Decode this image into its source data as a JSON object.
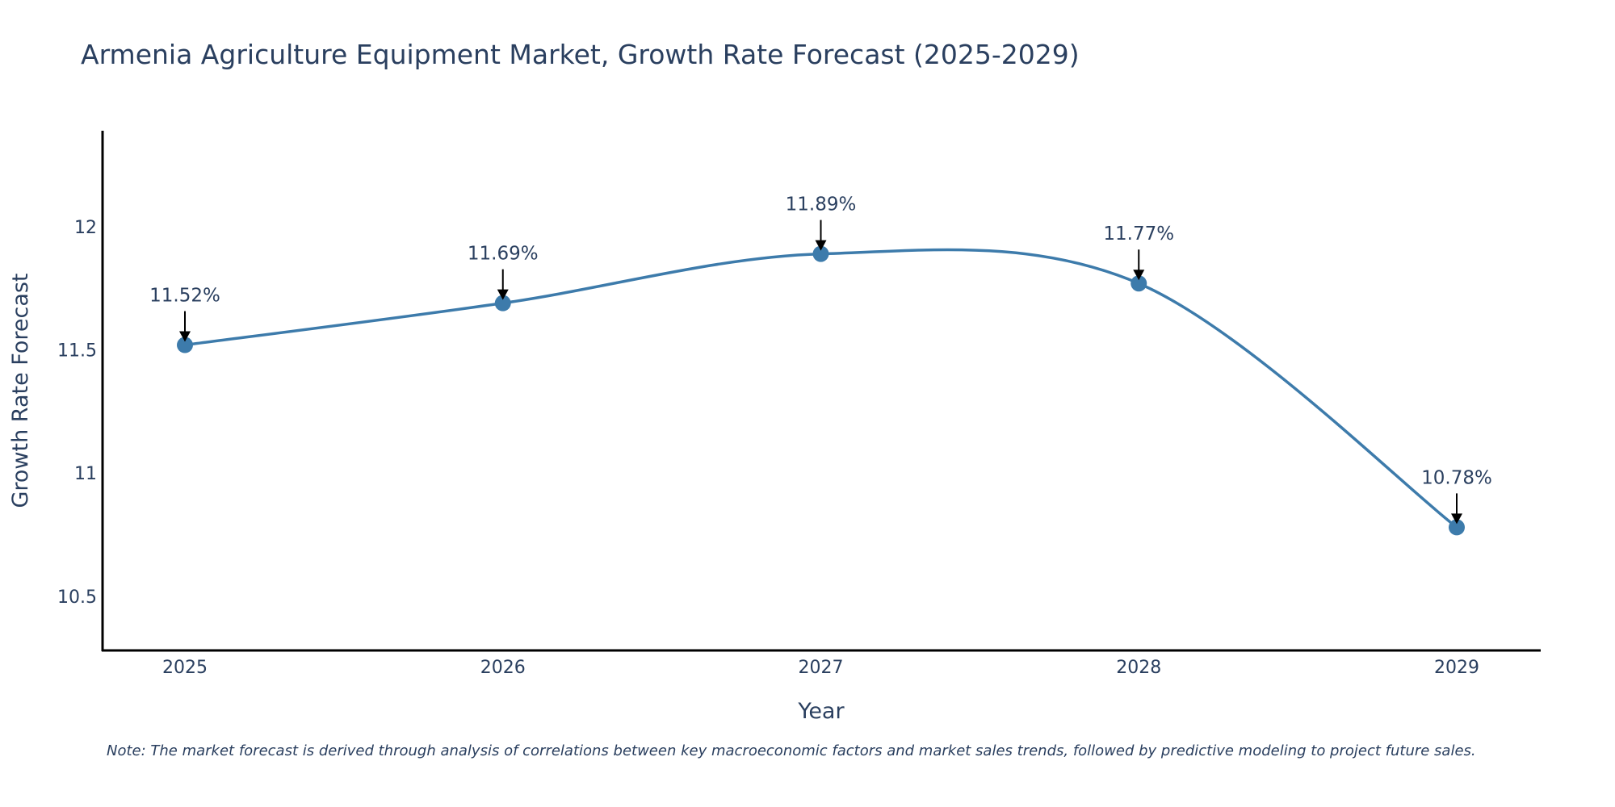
{
  "chart_data": {
    "type": "line",
    "title": "Armenia Agriculture Equipment Market, Growth Rate Forecast (2025-2029)",
    "xlabel": "Year",
    "ylabel": "Growth Rate Forecast",
    "categories": [
      "2025",
      "2026",
      "2027",
      "2028",
      "2029"
    ],
    "values": [
      11.52,
      11.69,
      11.89,
      11.77,
      10.78
    ],
    "data_labels": [
      "11.52%",
      "11.69%",
      "11.89%",
      "11.77%",
      "10.78%"
    ],
    "yticks": [
      10.5,
      11,
      11.5,
      12
    ],
    "ytick_labels": [
      "10.5",
      "11",
      "11.5",
      "12"
    ],
    "ylim": [
      10.28,
      12.39
    ],
    "grid": false,
    "line_shape": "spline",
    "series_color": "#3d7bab",
    "note": "Note: The market forecast is derived through analysis of correlations between key macroeconomic factors and market sales trends, followed by predictive modeling to project future sales."
  }
}
